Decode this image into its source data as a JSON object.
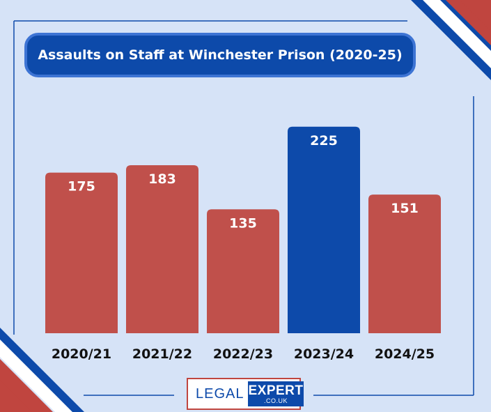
{
  "chart_data": {
    "type": "bar",
    "title": "Assaults on Staff at Winchester Prison (2020-25)",
    "categories": [
      "2020/21",
      "2021/22",
      "2022/23",
      "2023/24",
      "2024/25"
    ],
    "values": [
      175,
      183,
      135,
      225,
      151
    ],
    "highlight_index": 3,
    "ylim": [
      0,
      240
    ],
    "grid": false,
    "colors": {
      "bar": "#c0504b",
      "highlight": "#0d4aaa",
      "value_label": "#ffffff",
      "category_label": "#111111"
    }
  },
  "logo": {
    "word1": "LEGAL",
    "word2": "EXPERT",
    "domain": ".CO.UK"
  },
  "colors": {
    "background": "#d6e3f7",
    "frame_line": "#0d4aaa",
    "accent_red": "#c0453f",
    "accent_blue": "#0d4aaa"
  }
}
